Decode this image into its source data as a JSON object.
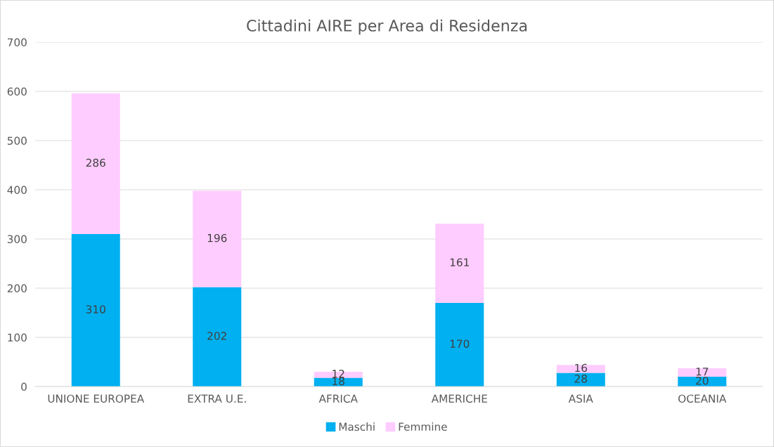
{
  "chart_data": {
    "type": "bar",
    "title": "Cittadini AIRE per Area di Residenza",
    "categories": [
      "UNIONE EUROPEA",
      "EXTRA U.E.",
      "AFRICA",
      "AMERICHE",
      "ASIA",
      "OCEANIA"
    ],
    "series": [
      {
        "name": "Maschi",
        "color": "#00b0f0",
        "values": [
          310,
          202,
          18,
          170,
          28,
          20
        ]
      },
      {
        "name": "Femmine",
        "color": "#ffccff",
        "values": [
          286,
          196,
          12,
          161,
          16,
          17
        ]
      }
    ],
    "stacked": true,
    "ylim": [
      0,
      700
    ],
    "yticks": [
      0,
      100,
      200,
      300,
      400,
      500,
      600,
      700
    ],
    "grid": "y",
    "legend": "bottom",
    "data_labels": true
  }
}
